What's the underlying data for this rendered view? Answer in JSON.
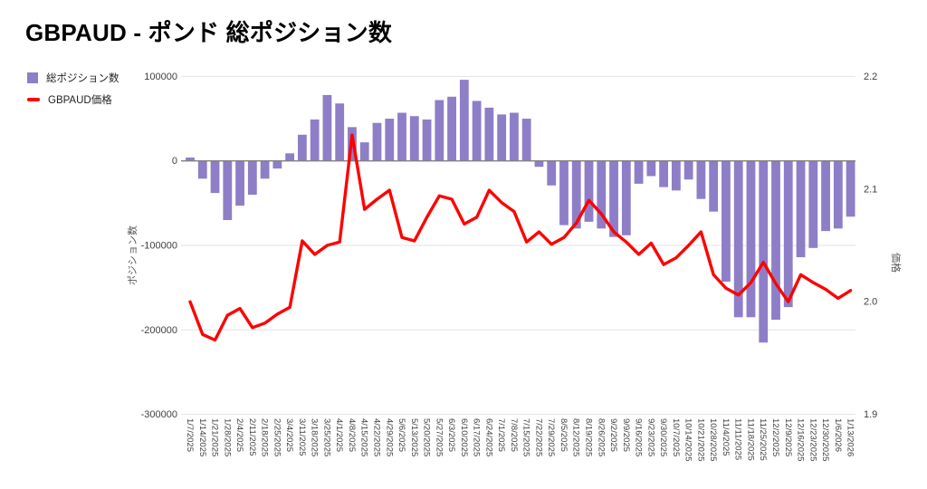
{
  "title": "GBPAUD - ポンド 総ポジション数",
  "legend": [
    {
      "label": "総ポジション数",
      "type": "bar"
    },
    {
      "label": "GBPAUD価格",
      "type": "line"
    }
  ],
  "colors": {
    "bar": "#8e7ec7",
    "line": "#ff0000",
    "zero_line": "#808080",
    "grid": "#e2e2e2",
    "tick_text": "#404040"
  },
  "left_axis": {
    "title": "ポジション数",
    "ticks": [
      {
        "label": "100000",
        "value": 100000
      },
      {
        "label": "0",
        "value": 0
      },
      {
        "label": "-100000",
        "value": -100000
      },
      {
        "label": "-200000",
        "value": -200000
      },
      {
        "label": "-300000",
        "value": -300000
      }
    ]
  },
  "right_axis": {
    "title": "価格",
    "ticks": [
      {
        "label": "2.2",
        "value": 2.2
      },
      {
        "label": "2.1",
        "value": 2.1
      },
      {
        "label": "2.0",
        "value": 2.0
      },
      {
        "label": "1.9",
        "value": 1.9
      }
    ]
  },
  "chart_data": {
    "type": "bar",
    "title": "GBPAUD - ポンド 総ポジション数",
    "categories": [
      "1/7/2025",
      "1/14/2025",
      "1/21/2025",
      "1/28/2025",
      "2/4/2025",
      "2/11/2025",
      "2/18/2025",
      "2/25/2025",
      "3/4/2025",
      "3/11/2025",
      "3/18/2025",
      "3/25/2025",
      "4/1/2025",
      "4/8/2025",
      "4/15/2025",
      "4/22/2025",
      "4/29/2025",
      "5/6/2025",
      "5/13/2025",
      "5/20/2025",
      "5/27/2025",
      "6/3/2025",
      "6/10/2025",
      "6/17/2025",
      "6/24/2025",
      "7/1/2025",
      "7/8/2025",
      "7/15/2025",
      "7/22/2025",
      "7/29/2025",
      "8/5/2025",
      "8/12/2025",
      "8/19/2025",
      "8/26/2025",
      "9/2/2025",
      "9/9/2025",
      "9/16/2025",
      "9/23/2025",
      "9/30/2025",
      "10/7/2025",
      "10/14/2025",
      "10/21/2025",
      "10/28/2025",
      "11/4/2025",
      "11/11/2025",
      "11/18/2025",
      "11/25/2025",
      "12/2/2025",
      "12/9/2025",
      "12/16/2025",
      "12/23/2025",
      "12/30/2025",
      "1/6/2026",
      "1/13/2026"
    ],
    "series": [
      {
        "name": "総ポジション数",
        "type": "bar",
        "axis": "left",
        "values": [
          4000,
          -21000,
          -38000,
          -70000,
          -53000,
          -40000,
          -21000,
          -9000,
          9000,
          31000,
          49000,
          78000,
          68000,
          40000,
          22000,
          45000,
          50000,
          57000,
          53000,
          49000,
          72000,
          76000,
          96000,
          71000,
          63000,
          55000,
          57000,
          50000,
          -7000,
          -29000,
          -76000,
          -80000,
          -72000,
          -80000,
          -90000,
          -88000,
          -27000,
          -18000,
          -31000,
          -35000,
          -22000,
          -45000,
          -60000,
          -143000,
          -185000,
          -185000,
          -215000,
          -188000,
          -173000,
          -114000,
          -103000,
          -83000,
          -80000,
          -66000
        ]
      },
      {
        "name": "GBPAUD価格",
        "type": "line",
        "axis": "right",
        "values": [
          2.0,
          1.971,
          1.966,
          1.988,
          1.994,
          1.977,
          1.981,
          1.989,
          1.995,
          2.054,
          2.042,
          2.05,
          2.053,
          2.148,
          2.082,
          2.091,
          2.099,
          2.057,
          2.054,
          2.075,
          2.094,
          2.091,
          2.069,
          2.075,
          2.099,
          2.088,
          2.08,
          2.053,
          2.062,
          2.051,
          2.057,
          2.07,
          2.09,
          2.078,
          2.062,
          2.053,
          2.042,
          2.052,
          2.033,
          2.039,
          2.05,
          2.062,
          2.024,
          2.012,
          2.006,
          2.017,
          2.035,
          2.016,
          2.0,
          2.024,
          2.017,
          2.011,
          2.003,
          2.01
        ]
      }
    ],
    "left_ylim": [
      -300000,
      100000
    ],
    "right_ylim": [
      1.9,
      2.2
    ],
    "grid": true,
    "legend_position": "top-left",
    "x_label_rotation": 90
  }
}
